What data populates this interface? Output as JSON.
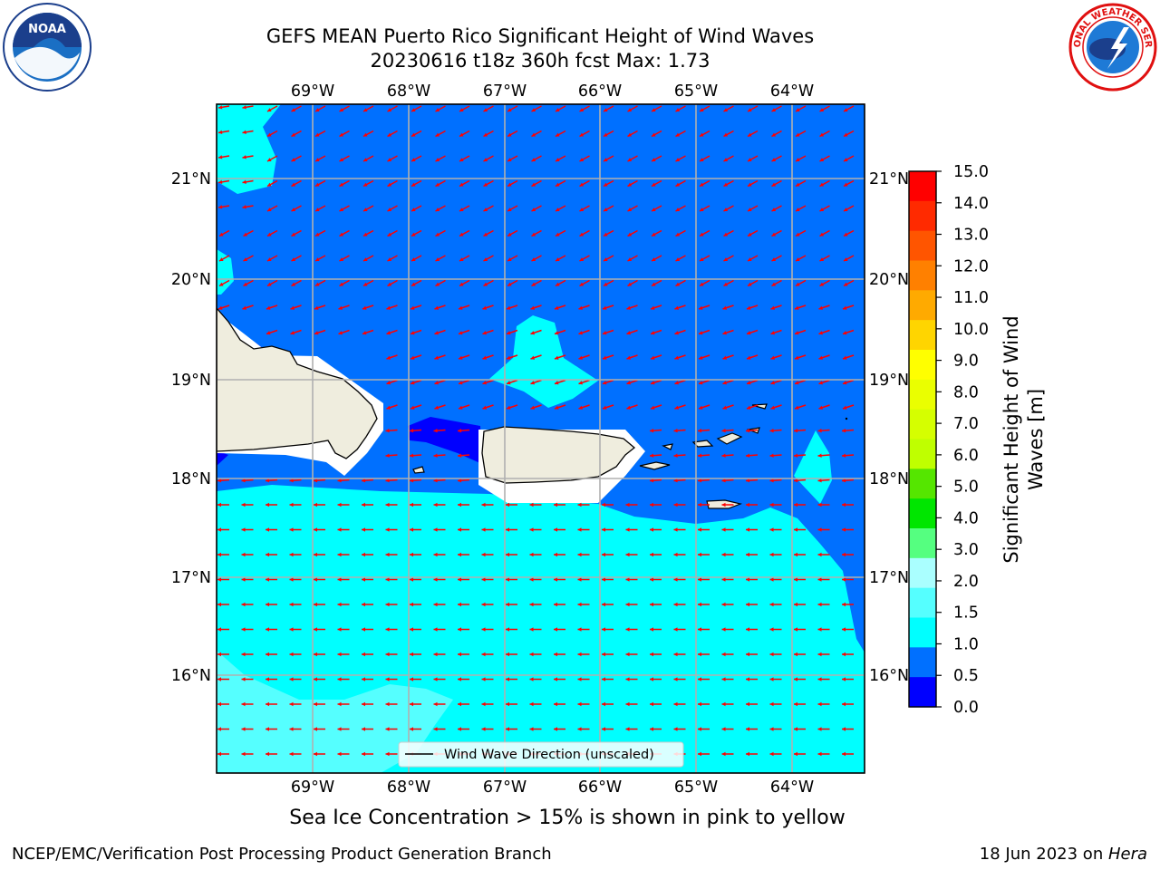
{
  "title": {
    "line1": "GEFS MEAN Puerto Rico Significant Height of Wind Waves",
    "line2": "20230616 t18z 360h fcst   Max: 1.73"
  },
  "map": {
    "lon_ticks": [
      "69°W",
      "68°W",
      "67°W",
      "66°W",
      "65°W",
      "64°W"
    ],
    "lat_ticks": [
      "21°N",
      "20°N",
      "19°N",
      "18°N",
      "17°N",
      "16°N"
    ],
    "legend_label": "Wind Wave Direction (unscaled)",
    "colors": {
      "c0_0_5": "#0000ff",
      "c0_5_1_0": "#0070ff",
      "c1_0_1_5": "#00ffff",
      "c1_5_2_0": "#55ffff",
      "land": "#efedde",
      "arrow": "#ff0000"
    }
  },
  "colorbar": {
    "label_line1": "Significant Height of Wind",
    "label_line2": "Waves [m]",
    "ticks": [
      "15.0",
      "14.0",
      "13.0",
      "12.0",
      "11.0",
      "10.0",
      "9.0",
      "8.0",
      "7.0",
      "6.0",
      "5.0",
      "4.0",
      "3.0",
      "2.0",
      "1.5",
      "1.0",
      "0.5",
      "0.0"
    ],
    "colors": [
      "#ff0000",
      "#ff2a00",
      "#ff5500",
      "#ff8000",
      "#ffaa00",
      "#ffd500",
      "#ffff00",
      "#eaff00",
      "#d5ff00",
      "#bfff00",
      "#55e600",
      "#00e600",
      "#55ff80",
      "#aaffff",
      "#55ffff",
      "#00ffff",
      "#0070ff",
      "#0000ff"
    ]
  },
  "note": "Sea Ice Concentration > 15% is shown in pink to yellow",
  "footer": {
    "left": "NCEP/EMC/Verification Post Processing Product Generation Branch",
    "right_prefix": "18 Jun 2023 on ",
    "right_host": "Hera"
  },
  "logos": {
    "noaa_text": "NOAA",
    "nws_ring_text": "NATIONAL WEATHER SERVICE"
  }
}
